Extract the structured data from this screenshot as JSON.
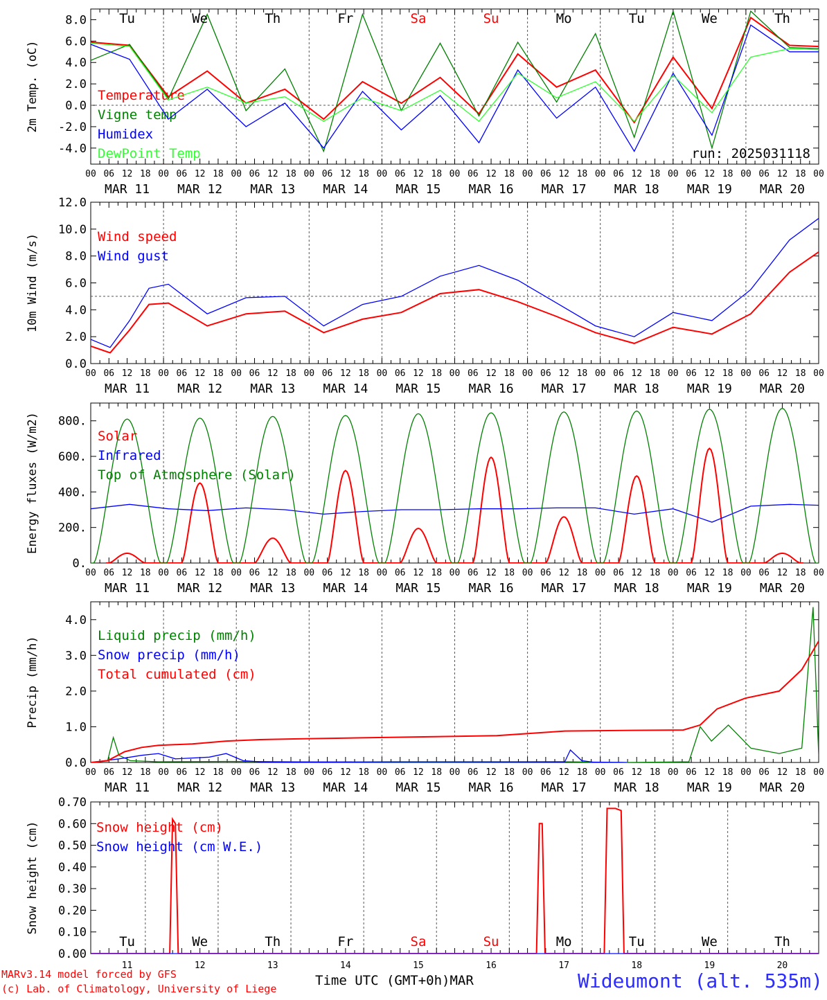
{
  "footer": {
    "model_line": "MARv3.14 model forced by GFS",
    "copyright_line": "(c) Lab. of Climatology, University of Liege",
    "time_label": "Time UTC (GMT+0h)",
    "month_label": "MAR",
    "station": "Wideumont (alt. 535m)"
  },
  "colors": {
    "red": "#ff0000",
    "green": "#008000",
    "blue": "#0000ff",
    "lightgreen": "#33ff33",
    "weekend": "#ff0000"
  },
  "weekdays": [
    {
      "label": "Tu",
      "weekend": false
    },
    {
      "label": "We",
      "weekend": false
    },
    {
      "label": "Th",
      "weekend": false
    },
    {
      "label": "Fr",
      "weekend": false
    },
    {
      "label": "Sa",
      "weekend": true
    },
    {
      "label": "Su",
      "weekend": true
    },
    {
      "label": "Mo",
      "weekend": false
    },
    {
      "label": "Tu",
      "weekend": false
    },
    {
      "label": "We",
      "weekend": false
    },
    {
      "label": "Th",
      "weekend": false
    }
  ],
  "date_labels": [
    "MAR 11",
    "MAR 12",
    "MAR 13",
    "MAR 14",
    "MAR 15",
    "MAR 16",
    "MAR 17",
    "MAR 18",
    "MAR 19",
    "MAR 20"
  ],
  "day_numbers": [
    "11",
    "12",
    "13",
    "14",
    "15",
    "16",
    "17",
    "18",
    "19",
    "20"
  ],
  "hour_ticks": [
    "00",
    "06",
    "12",
    "18"
  ],
  "chart_data": [
    {
      "type": "line",
      "ylabel": "2m Temp. (oC)",
      "ylim": [
        -5.5,
        9.0
      ],
      "yticks": [
        -4,
        -2,
        0,
        2,
        4,
        6,
        8
      ],
      "ytick_labels": [
        "-4.0",
        "-2.0",
        "0.0",
        "2.0",
        "4.0",
        "6.0",
        "8.0"
      ],
      "ref_line": 0,
      "run_label": "run: 2025031118",
      "x_unit": "hours since MAR 11 00 UTC",
      "series": [
        {
          "name": "Temperature",
          "color": "red",
          "x": [
            0,
            12,
            24,
            36,
            48,
            60,
            72,
            84,
            96,
            108,
            120,
            132,
            144,
            156,
            168,
            180,
            192,
            204,
            216,
            225
          ],
          "y": [
            5.9,
            5.6,
            0.8,
            3.2,
            0.2,
            1.5,
            -1.3,
            2.2,
            0.2,
            2.6,
            -0.8,
            4.8,
            1.7,
            3.3,
            -1.6,
            4.5,
            -0.3,
            8.2,
            5.6,
            5.5
          ]
        },
        {
          "name": "Vigne temp",
          "color": "green",
          "x": [
            0,
            12,
            24,
            36,
            48,
            60,
            72,
            84,
            96,
            108,
            120,
            132,
            144,
            156,
            168,
            180,
            192,
            204,
            216,
            225
          ],
          "y": [
            4.2,
            5.7,
            0.6,
            8.5,
            -0.5,
            3.4,
            -4.3,
            8.5,
            -0.5,
            5.8,
            -1.0,
            5.9,
            0.3,
            6.7,
            -3.0,
            8.8,
            -4.0,
            8.8,
            5.4,
            5.3
          ]
        },
        {
          "name": "Humidex",
          "color": "blue",
          "x": [
            0,
            12,
            24,
            36,
            48,
            60,
            72,
            84,
            96,
            108,
            120,
            132,
            144,
            156,
            168,
            180,
            192,
            204,
            216,
            225
          ],
          "y": [
            5.7,
            4.3,
            -1.3,
            1.5,
            -2.0,
            0.2,
            -4.0,
            1.3,
            -2.3,
            0.9,
            -3.5,
            3.3,
            -1.2,
            1.7,
            -4.3,
            3.0,
            -2.8,
            7.5,
            5.0,
            5.0
          ]
        },
        {
          "name": "DewPoint Temp",
          "color": "lightgreen",
          "x": [
            0,
            12,
            24,
            36,
            48,
            60,
            72,
            84,
            96,
            108,
            120,
            132,
            144,
            156,
            168,
            180,
            192,
            204,
            216,
            225
          ],
          "y": [
            5.8,
            5.5,
            0.5,
            1.7,
            0.2,
            0.8,
            -1.5,
            0.7,
            -0.5,
            1.4,
            -1.5,
            3.0,
            0.7,
            2.2,
            -1.5,
            2.8,
            -0.7,
            4.5,
            5.3,
            5.2
          ]
        }
      ]
    },
    {
      "type": "line",
      "ylabel": "10m Wind (m/s)",
      "ylim": [
        0,
        12
      ],
      "yticks": [
        0,
        2,
        4,
        6,
        8,
        10,
        12
      ],
      "ytick_labels": [
        "0.0",
        "2.0",
        "4.0",
        "6.0",
        "8.0",
        "10.0",
        "12.0"
      ],
      "ref_line": 5,
      "x_unit": "hours since MAR 11 00 UTC",
      "series": [
        {
          "name": "Wind speed",
          "color": "red",
          "x": [
            0,
            6,
            12,
            18,
            24,
            36,
            48,
            60,
            72,
            84,
            96,
            108,
            120,
            132,
            144,
            156,
            168,
            180,
            192,
            204,
            216,
            225
          ],
          "y": [
            1.3,
            0.8,
            2.5,
            4.4,
            4.5,
            2.8,
            3.7,
            3.9,
            2.3,
            3.3,
            3.8,
            5.2,
            5.5,
            4.6,
            3.5,
            2.3,
            1.5,
            2.7,
            2.2,
            3.7,
            6.8,
            8.3
          ]
        },
        {
          "name": "Wind gust",
          "color": "blue",
          "x": [
            0,
            6,
            12,
            18,
            24,
            36,
            48,
            60,
            72,
            84,
            96,
            108,
            120,
            132,
            144,
            156,
            168,
            180,
            192,
            204,
            216,
            225
          ],
          "y": [
            1.8,
            1.2,
            3.2,
            5.6,
            5.9,
            3.7,
            4.9,
            5.0,
            2.8,
            4.4,
            5.0,
            6.5,
            7.3,
            6.2,
            4.5,
            2.8,
            2.0,
            3.8,
            3.2,
            5.5,
            9.2,
            10.8
          ]
        }
      ]
    },
    {
      "type": "line",
      "ylabel": "Energy fluxes (W/m2)",
      "ylim": [
        0,
        900
      ],
      "yticks": [
        0,
        200,
        400,
        600,
        800
      ],
      "ytick_labels": [
        "0.",
        "200.",
        "400.",
        "600.",
        "800."
      ],
      "ref_line": null,
      "x_unit": "hours since MAR 11 00 UTC",
      "series": [
        {
          "name": "Solar",
          "color": "red",
          "peaks": [
            55,
            450,
            140,
            520,
            195,
            595,
            260,
            490,
            645,
            55
          ]
        },
        {
          "name": "Infrared",
          "color": "blue",
          "x": [
            0,
            12,
            24,
            36,
            48,
            60,
            72,
            84,
            96,
            108,
            120,
            132,
            144,
            156,
            168,
            180,
            192,
            204,
            216,
            225
          ],
          "y": [
            305,
            330,
            305,
            295,
            310,
            300,
            275,
            290,
            300,
            300,
            305,
            305,
            310,
            310,
            275,
            305,
            230,
            320,
            330,
            325
          ]
        },
        {
          "name": "Top of Atmosphere (Solar)",
          "color": "green",
          "peaks": [
            810,
            815,
            825,
            830,
            840,
            845,
            850,
            855,
            865,
            870
          ]
        }
      ]
    },
    {
      "type": "line",
      "ylabel": "Precip (mm/h)",
      "ylim": [
        0,
        4.5
      ],
      "yticks": [
        0,
        1,
        2,
        3,
        4
      ],
      "ytick_labels": [
        "0.0",
        "1.0",
        "2.0",
        "3.0",
        "4.0"
      ],
      "ref_line": null,
      "x_unit": "hours since MAR 11 00 UTC",
      "series": [
        {
          "name": "Liquid precip (mm/h)",
          "color": "green",
          "x": [
            0,
            6,
            8,
            10,
            14,
            24,
            48,
            96,
            168,
            190,
            212,
            216,
            220,
            226,
            234,
            244,
            252,
            256,
            258
          ],
          "y": [
            0,
            0.05,
            0.7,
            0.2,
            0.05,
            0.02,
            0.03,
            0.01,
            0.02,
            0.0,
            0.02,
            1.0,
            0.6,
            1.05,
            0.4,
            0.25,
            0.4,
            4.35,
            0.2
          ]
        },
        {
          "name": "Snow precip (mm/h)",
          "color": "blue",
          "x": [
            0,
            10,
            14,
            18,
            24,
            30,
            42,
            48,
            54,
            60,
            72,
            108,
            168,
            170,
            174,
            178,
            190
          ],
          "y": [
            0,
            0.1,
            0.15,
            0.2,
            0.25,
            0.1,
            0.15,
            0.25,
            0.05,
            0.02,
            0.01,
            0.02,
            0.02,
            0.35,
            0.05,
            0.01,
            0.0
          ]
        },
        {
          "name": "Total cumulated (cm)",
          "color": "red",
          "x": [
            0,
            6,
            12,
            18,
            24,
            36,
            48,
            60,
            72,
            96,
            120,
            144,
            168,
            192,
            210,
            216,
            222,
            232,
            244,
            252,
            258
          ],
          "y": [
            0,
            0.05,
            0.3,
            0.42,
            0.48,
            0.52,
            0.6,
            0.64,
            0.66,
            0.69,
            0.72,
            0.75,
            0.88,
            0.9,
            0.91,
            1.05,
            1.5,
            1.8,
            2.0,
            2.6,
            3.4
          ]
        }
      ]
    },
    {
      "type": "line",
      "ylabel": "Snow height (cm)",
      "ylim": [
        0,
        0.7
      ],
      "yticks": [
        0,
        0.1,
        0.2,
        0.3,
        0.4,
        0.5,
        0.6,
        0.7
      ],
      "ytick_labels": [
        "0.00",
        "0.10",
        "0.20",
        "0.30",
        "0.40",
        "0.50",
        "0.60",
        "0.70"
      ],
      "ref_line": null,
      "x_unit": "hours since MAR 11 00 UTC",
      "series": [
        {
          "name": "Snow height (cm)",
          "color": "red",
          "x": [
            0,
            28,
            29,
            30,
            31,
            32,
            158,
            159,
            160,
            161,
            182,
            183,
            184,
            186,
            188,
            189,
            260
          ],
          "y": [
            0,
            0,
            0.62,
            0.6,
            0,
            0,
            0,
            0.6,
            0.6,
            0,
            0,
            0.67,
            0.67,
            0.67,
            0.66,
            0,
            0
          ]
        },
        {
          "name": "Snow height (cm W.E.)",
          "color": "blue",
          "x": [
            0,
            260
          ],
          "y": [
            0,
            0
          ]
        }
      ]
    }
  ]
}
